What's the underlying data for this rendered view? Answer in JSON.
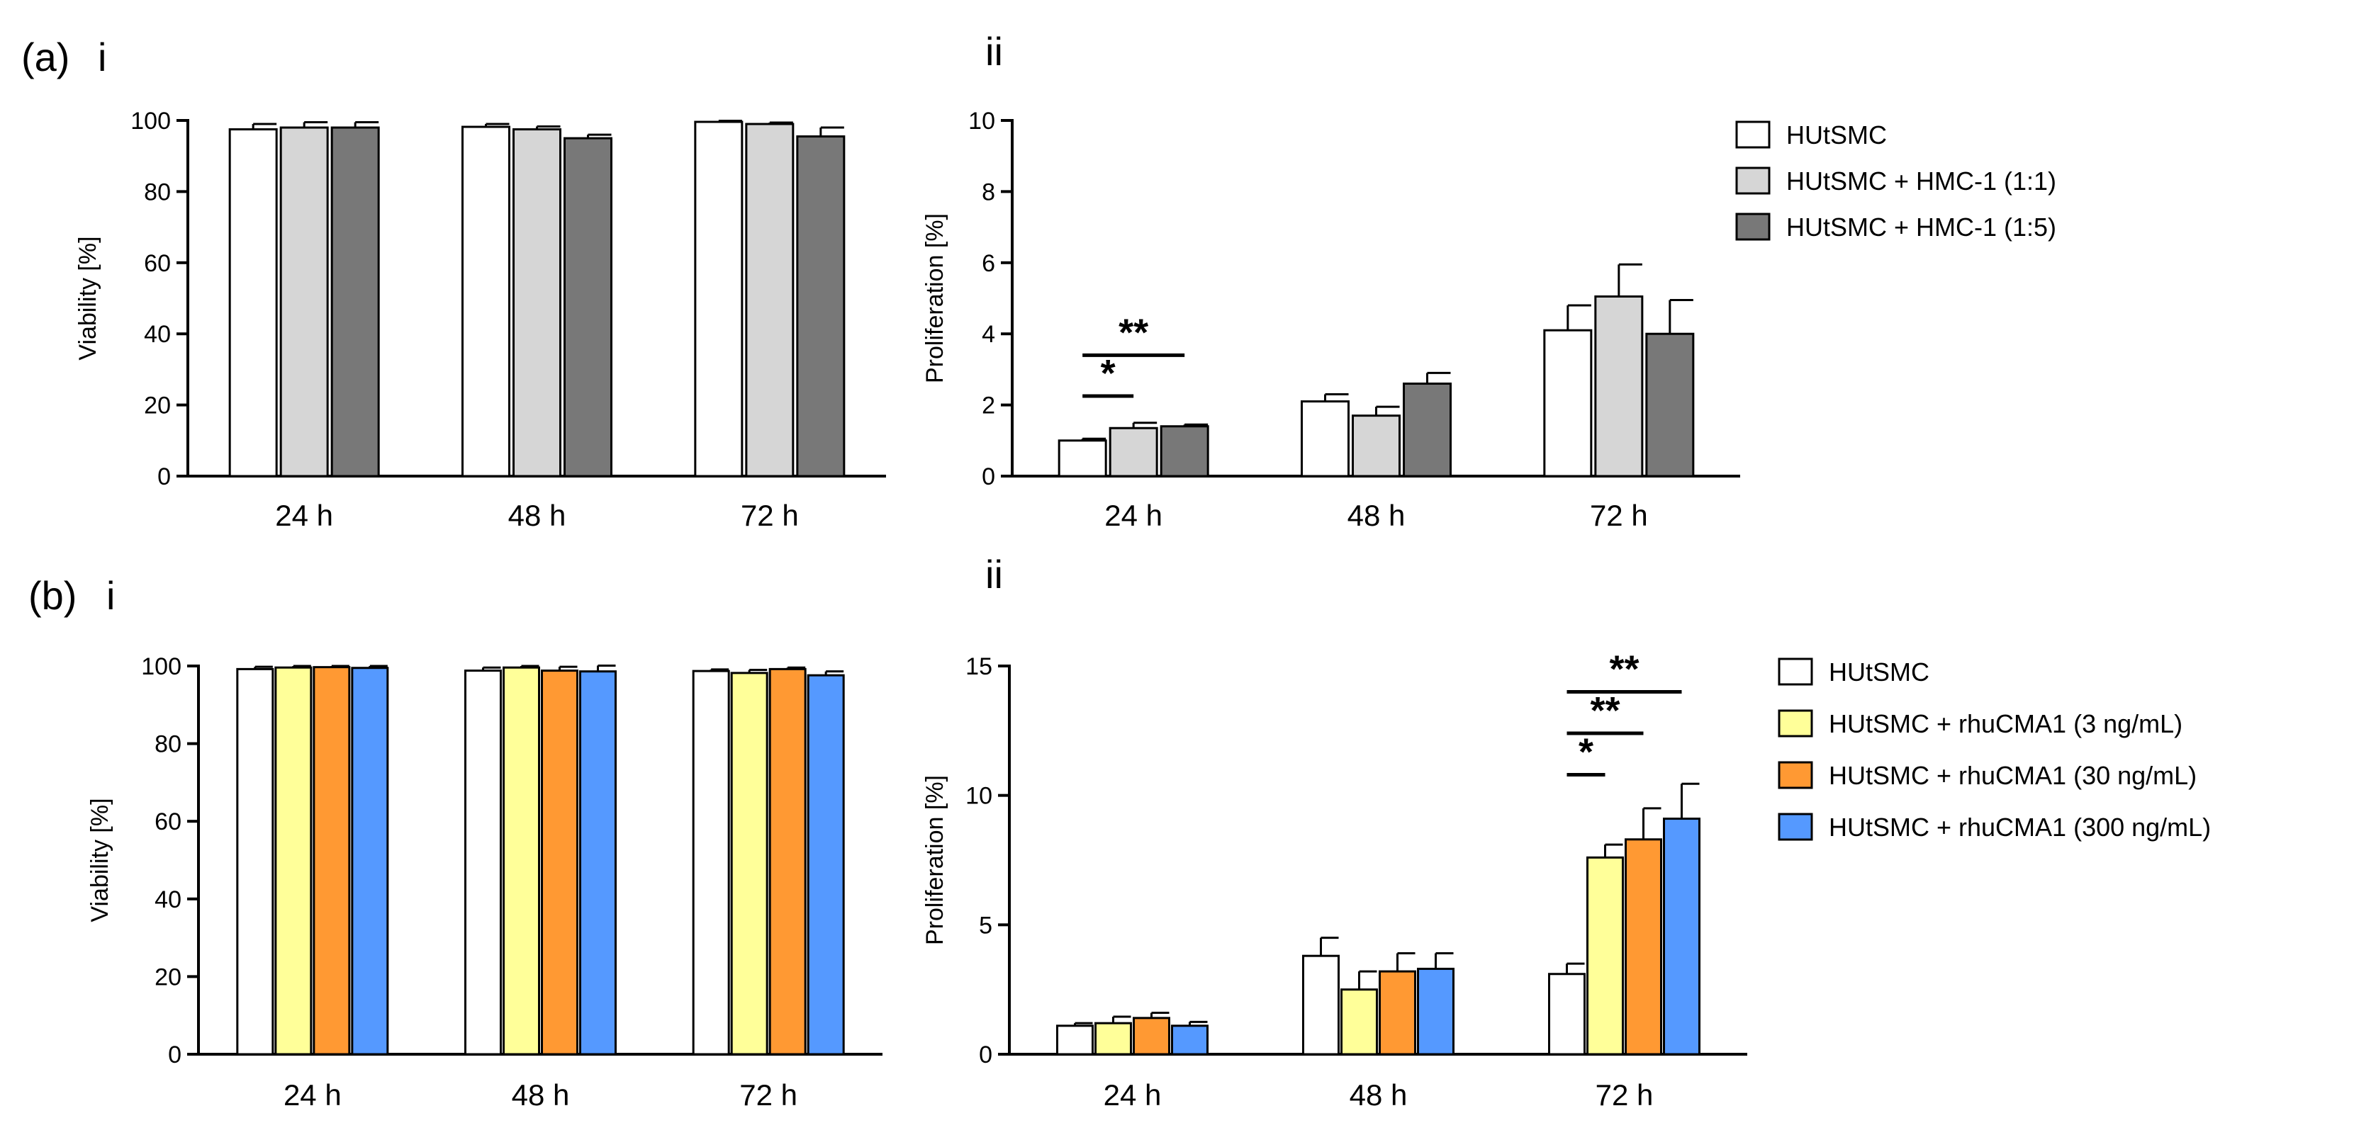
{
  "figure": {
    "panels": [
      {
        "id": "a-i",
        "label": "(a)",
        "sub": "i"
      },
      {
        "id": "a-ii",
        "label": "",
        "sub": "ii"
      },
      {
        "id": "b-i",
        "label": "(b)",
        "sub": "i"
      },
      {
        "id": "b-ii",
        "label": "",
        "sub": "ii"
      }
    ],
    "legends": [
      {
        "id": "legend-a",
        "entries": [
          "HUtSMC",
          "HUtSMC + HMC-1 (1:1)",
          "HUtSMC + HMC-1 (1:5)"
        ]
      },
      {
        "id": "legend-b",
        "entries": [
          "HUtSMC",
          "HUtSMC + rhuCMA1 (3 ng/mL)",
          "HUtSMC + rhuCMA1 (30 ng/mL)",
          "HUtSMC + rhuCMA1 (300 ng/mL)"
        ]
      }
    ]
  },
  "chart_data": [
    {
      "id": "a-i",
      "type": "bar",
      "ylabel": "Viability [%]",
      "ylim": [
        0,
        100
      ],
      "yticks": [
        0,
        20,
        40,
        60,
        80,
        100
      ],
      "categories": [
        "24 h",
        "48 h",
        "72 h"
      ],
      "colors": [
        "#ffffff",
        "#d6d6d6",
        "#787878"
      ],
      "series": [
        {
          "name": "HUtSMC",
          "values": [
            97.5,
            98.2,
            99.6
          ],
          "errors": [
            1.5,
            0.8,
            0.3
          ]
        },
        {
          "name": "HUtSMC + HMC-1 (1:1)",
          "values": [
            98.0,
            97.5,
            99.0
          ],
          "errors": [
            1.5,
            0.8,
            0.4
          ]
        },
        {
          "name": "HUtSMC + HMC-1 (1:5)",
          "values": [
            98.0,
            95.0,
            95.5
          ],
          "errors": [
            1.5,
            1.0,
            2.5
          ]
        }
      ],
      "significance": []
    },
    {
      "id": "a-ii",
      "type": "bar",
      "ylabel": "Proliferation [%]",
      "ylim": [
        0,
        10
      ],
      "yticks": [
        0,
        2,
        4,
        6,
        8,
        10
      ],
      "categories": [
        "24 h",
        "48 h",
        "72 h"
      ],
      "colors": [
        "#ffffff",
        "#d6d6d6",
        "#787878"
      ],
      "series": [
        {
          "name": "HUtSMC",
          "values": [
            1.0,
            2.1,
            4.1
          ],
          "errors": [
            0.05,
            0.2,
            0.7
          ]
        },
        {
          "name": "HUtSMC + HMC-1 (1:1)",
          "values": [
            1.35,
            1.7,
            5.05
          ],
          "errors": [
            0.15,
            0.25,
            0.9
          ]
        },
        {
          "name": "HUtSMC + HMC-1 (1:5)",
          "values": [
            1.4,
            2.6,
            4.0
          ],
          "errors": [
            0.05,
            0.3,
            0.95
          ]
        }
      ],
      "significance": [
        {
          "group": 0,
          "from": 0,
          "to": 1,
          "label": "*",
          "y": 2.25
        },
        {
          "group": 0,
          "from": 0,
          "to": 2,
          "label": "**",
          "y": 3.4
        }
      ]
    },
    {
      "id": "b-i",
      "type": "bar",
      "ylabel": "Viability [%]",
      "ylim": [
        0,
        100
      ],
      "yticks": [
        0,
        20,
        40,
        60,
        80,
        100
      ],
      "categories": [
        "24 h",
        "48 h",
        "72 h"
      ],
      "colors": [
        "#ffffff",
        "#ffff99",
        "#ff9933",
        "#5599ff"
      ],
      "series": [
        {
          "name": "HUtSMC",
          "values": [
            99.2,
            98.8,
            98.7
          ],
          "errors": [
            0.6,
            0.8,
            0.4
          ]
        },
        {
          "name": "HUtSMC + rhuCMA1 (3 ng/mL)",
          "values": [
            99.6,
            99.6,
            98.2
          ],
          "errors": [
            0.4,
            0.4,
            0.8
          ]
        },
        {
          "name": "HUtSMC + rhuCMA1 (30 ng/mL)",
          "values": [
            99.7,
            98.8,
            99.2
          ],
          "errors": [
            0.3,
            1.0,
            0.4
          ]
        },
        {
          "name": "HUtSMC + rhuCMA1 (300 ng/mL)",
          "values": [
            99.5,
            98.6,
            97.6
          ],
          "errors": [
            0.5,
            1.5,
            1.0
          ]
        }
      ],
      "significance": []
    },
    {
      "id": "b-ii",
      "type": "bar",
      "ylabel": "Proliferation  [%]",
      "ylim": [
        0,
        15
      ],
      "yticks": [
        0,
        5,
        10,
        15
      ],
      "categories": [
        "24 h",
        "48 h",
        "72 h"
      ],
      "colors": [
        "#ffffff",
        "#ffff99",
        "#ff9933",
        "#5599ff"
      ],
      "series": [
        {
          "name": "HUtSMC",
          "values": [
            1.1,
            3.8,
            3.1
          ],
          "errors": [
            0.1,
            0.7,
            0.4
          ]
        },
        {
          "name": "HUtSMC + rhuCMA1 (3 ng/mL)",
          "values": [
            1.2,
            2.5,
            7.6
          ],
          "errors": [
            0.25,
            0.7,
            0.5
          ]
        },
        {
          "name": "HUtSMC + rhuCMA1 (30 ng/mL)",
          "values": [
            1.4,
            3.2,
            8.3
          ],
          "errors": [
            0.2,
            0.7,
            1.2
          ]
        },
        {
          "name": "HUtSMC + rhuCMA1 (300 ng/mL)",
          "values": [
            1.1,
            3.3,
            9.1
          ],
          "errors": [
            0.15,
            0.6,
            1.35
          ]
        }
      ],
      "significance": [
        {
          "group": 2,
          "from": 0,
          "to": 1,
          "label": "*",
          "y": 10.8
        },
        {
          "group": 2,
          "from": 0,
          "to": 2,
          "label": "**",
          "y": 12.4
        },
        {
          "group": 2,
          "from": 0,
          "to": 3,
          "label": "**",
          "y": 14.0
        }
      ]
    }
  ]
}
